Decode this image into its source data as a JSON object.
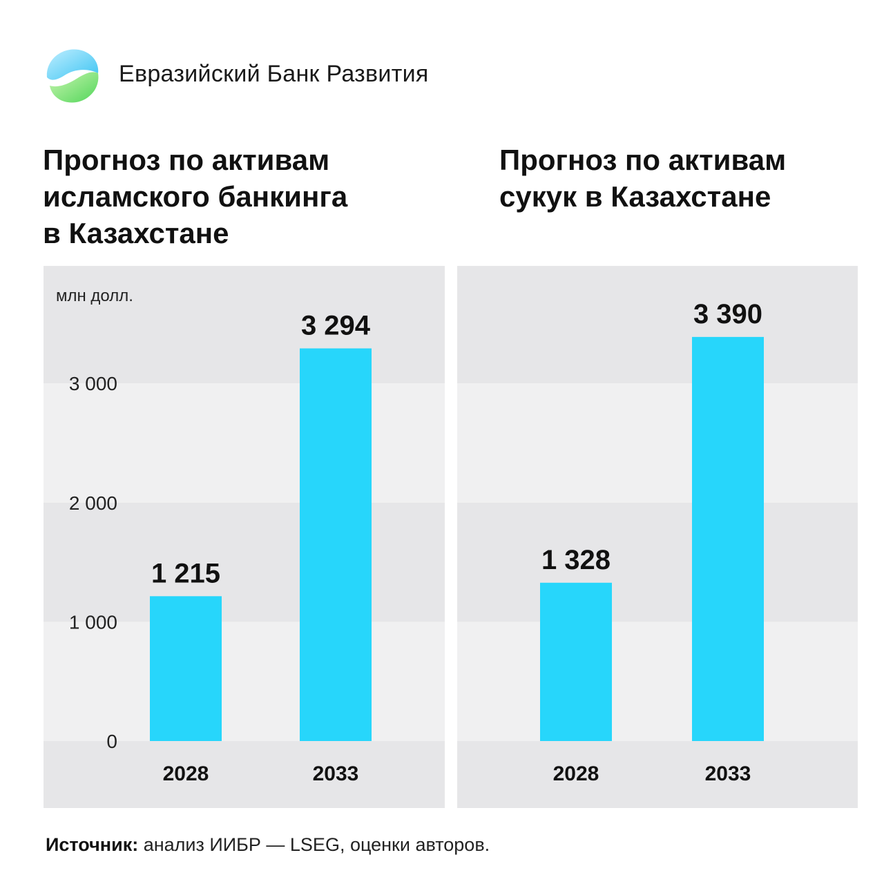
{
  "brand": {
    "name": "Евразийский Банк Развития",
    "logo_colors": [
      "#5fd0f5",
      "#7be36a"
    ]
  },
  "source": {
    "label": "Источник:",
    "text": " анализ ИИБР — LSEG, оценки авторов."
  },
  "colors": {
    "bar": "#27d6fb",
    "band_dark": "#e6e6e8",
    "band_light": "#f0f0f1"
  },
  "chart_data": [
    {
      "type": "bar",
      "title_lines": [
        "Прогноз по активам",
        "исламского банкинга",
        "в Казахстане"
      ],
      "unit": "млн долл.",
      "categories": [
        "2028",
        "2033"
      ],
      "values": [
        1215,
        3294
      ],
      "value_labels": [
        "1 215",
        "3 294"
      ],
      "yticks": [
        0,
        1000,
        2000,
        3000
      ],
      "ytick_labels": [
        "0",
        "1 000",
        "2 000",
        "3 000"
      ],
      "ylim": [
        0,
        3900
      ],
      "grid": false
    },
    {
      "type": "bar",
      "title_lines": [
        "Прогноз по активам",
        "сукук в Казахстане"
      ],
      "categories": [
        "2028",
        "2033"
      ],
      "values": [
        1328,
        3390
      ],
      "value_labels": [
        "1 328",
        "3 390"
      ],
      "yticks": [
        0,
        1000,
        2000,
        3000
      ],
      "ylim": [
        0,
        3900
      ],
      "grid": false
    }
  ]
}
